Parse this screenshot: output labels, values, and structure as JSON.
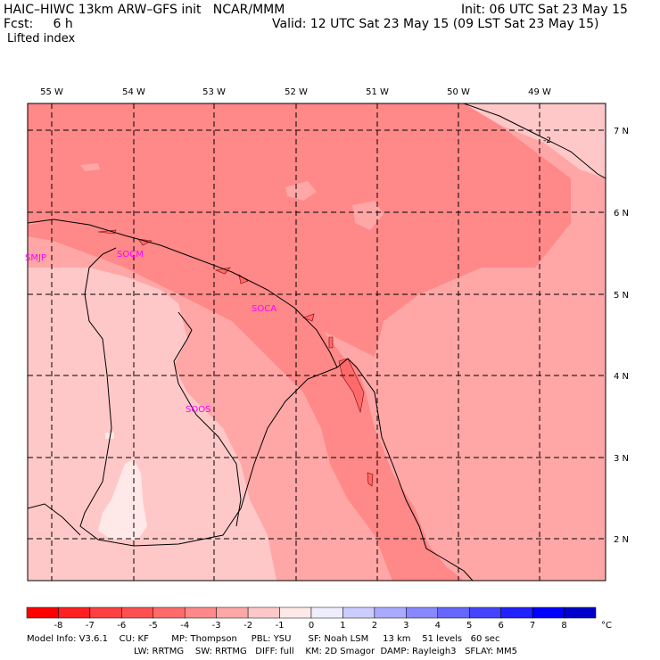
{
  "header": {
    "left_line1": "HAIC–HIWC 13km ARW–GFS init   NCAR/MMM",
    "left_line2": "Fcst:     6 h",
    "right_line1": "Init: 06 UTC Sat 23 May 15",
    "right_line2": "Valid: 12 UTC Sat 23 May 15 (09 LST Sat 23 May 15)",
    "field_name": "Lifted index"
  },
  "axes": {
    "lon_labels": [
      "55 W",
      "54 W",
      "53 W",
      "52 W",
      "51 W",
      "50 W",
      "49 W"
    ],
    "lat_labels": [
      "7 N",
      "6 N",
      "5 N",
      "4 N",
      "3 N",
      "2 N"
    ]
  },
  "stations": [
    {
      "id": "SMJP"
    },
    {
      "id": "SOCM"
    },
    {
      "id": "SOCA"
    },
    {
      "id": "SOOS"
    }
  ],
  "contour_label": "-2",
  "colorbar": {
    "ticks": [
      "-8",
      "-7",
      "-6",
      "-5",
      "-4",
      "-3",
      "-2",
      "-1",
      "0",
      "1",
      "2",
      "3",
      "4",
      "5",
      "6",
      "7",
      "8"
    ],
    "unit": "°C",
    "colors": [
      "#ff0000",
      "#ff2020",
      "#ff4040",
      "#ff5050",
      "#ff6a6a",
      "#ff8888",
      "#ffa6a6",
      "#ffc8c8",
      "#ffe8e8",
      "#eeeeff",
      "#ccccff",
      "#aaaaff",
      "#8888ff",
      "#6666ff",
      "#4444ff",
      "#2222ff",
      "#0000ff",
      "#0000cc"
    ]
  },
  "footer": {
    "line1": "Model Info: V3.6.1    CU: KF        MP: Thompson     PBL: YSU      SF: Noah LSM     13 km    51 levels   60 sec",
    "line2": "LW: RRTMG    SW: RRTMG   DIFF: full    KM: 2D Smagor  DAMP: Rayleigh3   SFLAY: MM5"
  }
}
